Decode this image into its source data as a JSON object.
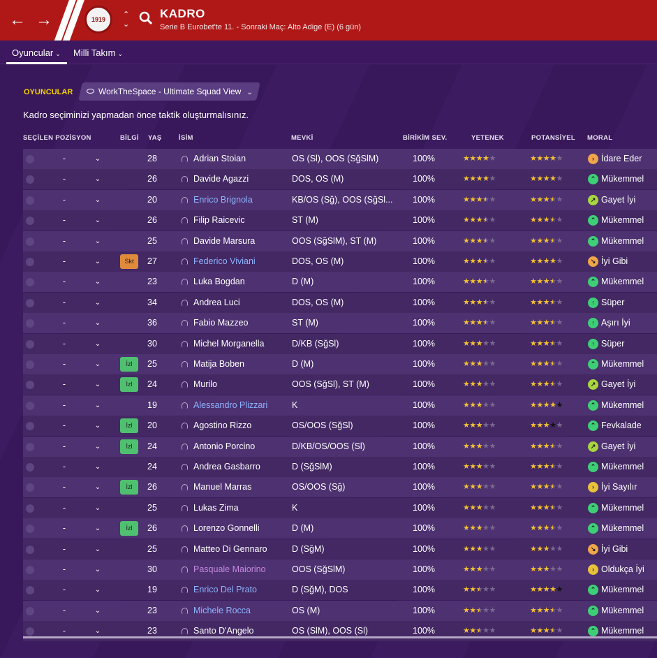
{
  "header": {
    "title": "KADRO",
    "subtitle": "Serie B Eurobet'te 11. - Sonraki Maç: Alto Adige (E) (6 gün)",
    "club_badge_text": "1919",
    "back_icon": "arrow-left-icon",
    "forward_icon": "arrow-right-icon",
    "search_icon": "search-icon"
  },
  "subnav": {
    "tab1": "Oyuncular",
    "tab2": "Milli Takım"
  },
  "toolbar": {
    "section_label": "OYUNCULAR",
    "view_label": "WorkTheSpace - Ultimate Squad View"
  },
  "info_text": "Kadro seçiminizi yapmadan önce taktik oluşturmalısınız.",
  "columns": {
    "selected_position": "SEÇİLEN POZİSYON",
    "info": "BİLGİ",
    "age": "YAŞ",
    "name": "İSİM",
    "position": "MEVKİ",
    "accumulated_fitness": "BİRİKİM SEV.",
    "ability": "YETENEK",
    "potential": "POTANSİYEL",
    "morale": "MORAL"
  },
  "colors": {
    "topbar": "#b01818",
    "accent_label": "#f5d200",
    "star": "#f2c230",
    "morale_green": "#3ecf76",
    "morale_yellow": "#e8c23a",
    "morale_orange": "#f0a54a"
  },
  "players": [
    {
      "pos_sel": "-",
      "info": "",
      "age": "28",
      "name": "Adrian Stoian",
      "name_style": "normal",
      "position": "OS (Sl), OOS (SğSlM)",
      "fitness": "100%",
      "ability": "4",
      "potential": "4",
      "morale": "İdare Eder",
      "morale_color": "#f0a54a",
      "morale_icon": "arrow-right-icon"
    },
    {
      "pos_sel": "-",
      "info": "",
      "age": "26",
      "name": "Davide Agazzi",
      "name_style": "normal",
      "position": "DOS, OS (M)",
      "fitness": "100%",
      "ability": "4",
      "potential": "4",
      "morale": "Mükemmel",
      "morale_color": "#3ecf76",
      "morale_icon": "double-up-icon"
    },
    {
      "pos_sel": "-",
      "info": "",
      "age": "20",
      "name": "Enrico Brignola",
      "name_style": "link",
      "position": "KB/OS (Sğ), OOS (SğSl...",
      "fitness": "100%",
      "ability": "3.5",
      "potential": "3.5d",
      "morale": "Gayet İyi",
      "morale_color": "#a8d640",
      "morale_icon": "arrow-up-right-icon"
    },
    {
      "pos_sel": "-",
      "info": "",
      "age": "26",
      "name": "Filip Raicevic",
      "name_style": "normal",
      "position": "ST (M)",
      "fitness": "100%",
      "ability": "3.5",
      "potential": "3.5",
      "morale": "Mükemmel",
      "morale_color": "#3ecf76",
      "morale_icon": "double-up-icon"
    },
    {
      "pos_sel": "-",
      "info": "",
      "age": "25",
      "name": "Davide Marsura",
      "name_style": "normal",
      "position": "OOS (SğSlM), ST (M)",
      "fitness": "100%",
      "ability": "3.5",
      "potential": "3.5",
      "morale": "Mükemmel",
      "morale_color": "#3ecf76",
      "morale_icon": "double-up-icon"
    },
    {
      "pos_sel": "-",
      "info": "Skt",
      "age": "27",
      "name": "Federico Viviani",
      "name_style": "link",
      "position": "DOS, OS (M)",
      "fitness": "100%",
      "ability": "3.5",
      "potential": "4",
      "morale": "İyi Gibi",
      "morale_color": "#f0a54a",
      "morale_icon": "arrow-down-right-icon"
    },
    {
      "pos_sel": "-",
      "info": "",
      "age": "23",
      "name": "Luka Bogdan",
      "name_style": "normal",
      "position": "D (M)",
      "fitness": "100%",
      "ability": "3.5",
      "potential": "3.5",
      "morale": "Mükemmel",
      "morale_color": "#3ecf76",
      "morale_icon": "double-up-icon"
    },
    {
      "pos_sel": "-",
      "info": "",
      "age": "34",
      "name": "Andrea Luci",
      "name_style": "normal",
      "position": "DOS, OS (M)",
      "fitness": "100%",
      "ability": "3.5",
      "potential": "3.5",
      "morale": "Süper",
      "morale_color": "#3ecf76",
      "morale_icon": "arrow-up-icon"
    },
    {
      "pos_sel": "-",
      "info": "",
      "age": "36",
      "name": "Fabio Mazzeo",
      "name_style": "normal",
      "position": "ST (M)",
      "fitness": "100%",
      "ability": "3.5",
      "potential": "3.5",
      "morale": "Aşırı İyi",
      "morale_color": "#3ecf76",
      "morale_icon": "arrow-up-icon"
    },
    {
      "pos_sel": "-",
      "info": "",
      "age": "30",
      "name": "Michel Morganella",
      "name_style": "normal",
      "position": "D/KB (SğSl)",
      "fitness": "100%",
      "ability": "3",
      "potential": "3.5",
      "morale": "Süper",
      "morale_color": "#3ecf76",
      "morale_icon": "arrow-up-icon"
    },
    {
      "pos_sel": "-",
      "info": "İzl",
      "age": "25",
      "name": "Matija Boben",
      "name_style": "normal",
      "position": "D (M)",
      "fitness": "100%",
      "ability": "3",
      "potential": "3.5",
      "morale": "Mükemmel",
      "morale_color": "#3ecf76",
      "morale_icon": "double-up-icon"
    },
    {
      "pos_sel": "-",
      "info": "İzl",
      "age": "24",
      "name": "Murilo",
      "name_style": "normal",
      "position": "OOS (SğSl), ST (M)",
      "fitness": "100%",
      "ability": "3",
      "potential": "3.5",
      "morale": "Gayet İyi",
      "morale_color": "#a8d640",
      "morale_icon": "arrow-up-right-icon"
    },
    {
      "pos_sel": "-",
      "info": "",
      "age": "19",
      "name": "Alessandro Plizzari",
      "name_style": "link",
      "position": "K",
      "fitness": "100%",
      "ability": "3",
      "potential": "4d",
      "morale": "Mükemmel",
      "morale_color": "#3ecf76",
      "morale_icon": "double-up-icon"
    },
    {
      "pos_sel": "-",
      "info": "İzl",
      "age": "20",
      "name": "Agostino Rizzo",
      "name_style": "normal",
      "position": "OS/OOS (SğSl)",
      "fitness": "100%",
      "ability": "3",
      "potential": "3d",
      "morale": "Fevkalade",
      "morale_color": "#3ecf76",
      "morale_icon": "double-up-icon"
    },
    {
      "pos_sel": "-",
      "info": "İzl",
      "age": "24",
      "name": "Antonio Porcino",
      "name_style": "normal",
      "position": "D/KB/OS/OOS (Sl)",
      "fitness": "100%",
      "ability": "3",
      "potential": "3.5",
      "morale": "Gayet İyi",
      "morale_color": "#a8d640",
      "morale_icon": "arrow-up-right-icon"
    },
    {
      "pos_sel": "-",
      "info": "",
      "age": "24",
      "name": "Andrea Gasbarro",
      "name_style": "normal",
      "position": "D (SğSlM)",
      "fitness": "100%",
      "ability": "3",
      "potential": "3.5",
      "morale": "Mükemmel",
      "morale_color": "#3ecf76",
      "morale_icon": "double-up-icon"
    },
    {
      "pos_sel": "-",
      "info": "İzl",
      "age": "26",
      "name": "Manuel Marras",
      "name_style": "normal",
      "position": "OS/OOS (Sğ)",
      "fitness": "100%",
      "ability": "3",
      "potential": "3.5",
      "morale": "İyi Sayılır",
      "morale_color": "#e8c23a",
      "morale_icon": "arrow-right-icon"
    },
    {
      "pos_sel": "-",
      "info": "",
      "age": "25",
      "name": "Lukas Zima",
      "name_style": "normal",
      "position": "K",
      "fitness": "100%",
      "ability": "3",
      "potential": "3.5",
      "morale": "Mükemmel",
      "morale_color": "#3ecf76",
      "morale_icon": "double-up-icon"
    },
    {
      "pos_sel": "-",
      "info": "İzl",
      "age": "26",
      "name": "Lorenzo Gonnelli",
      "name_style": "normal",
      "position": "D (M)",
      "fitness": "100%",
      "ability": "3",
      "potential": "3.5",
      "morale": "Mükemmel",
      "morale_color": "#3ecf76",
      "morale_icon": "double-up-icon"
    },
    {
      "pos_sel": "-",
      "info": "",
      "age": "25",
      "name": "Matteo Di Gennaro",
      "name_style": "normal",
      "position": "D (SğM)",
      "fitness": "100%",
      "ability": "3",
      "potential": "3",
      "morale": "İyi Gibi",
      "morale_color": "#f0a54a",
      "morale_icon": "arrow-down-right-icon"
    },
    {
      "pos_sel": "-",
      "info": "",
      "age": "30",
      "name": "Pasquale Maiorino",
      "name_style": "loan",
      "position": "OOS (SğSlM)",
      "fitness": "100%",
      "ability": "3",
      "potential": "3",
      "morale": "Oldukça İyi",
      "morale_color": "#e8c23a",
      "morale_icon": "arrow-right-icon"
    },
    {
      "pos_sel": "-",
      "info": "",
      "age": "19",
      "name": "Enrico Del Prato",
      "name_style": "link",
      "position": "D (SğM), DOS",
      "fitness": "100%",
      "ability": "2.5",
      "potential": "4d",
      "morale": "Mükemmel",
      "morale_color": "#3ecf76",
      "morale_icon": "double-up-icon"
    },
    {
      "pos_sel": "-",
      "info": "",
      "age": "23",
      "name": "Michele Rocca",
      "name_style": "link",
      "position": "OS (M)",
      "fitness": "100%",
      "ability": "2.5",
      "potential": "3.5",
      "morale": "Mükemmel",
      "morale_color": "#3ecf76",
      "morale_icon": "double-up-icon"
    },
    {
      "pos_sel": "-",
      "info": "",
      "age": "23",
      "name": "Santo D'Angelo",
      "name_style": "normal",
      "position": "OS (SlM), OOS (Sl)",
      "fitness": "100%",
      "ability": "2.5",
      "potential": "3.5",
      "morale": "Mükemmel",
      "morale_color": "#3ecf76",
      "morale_icon": "double-up-icon"
    }
  ]
}
